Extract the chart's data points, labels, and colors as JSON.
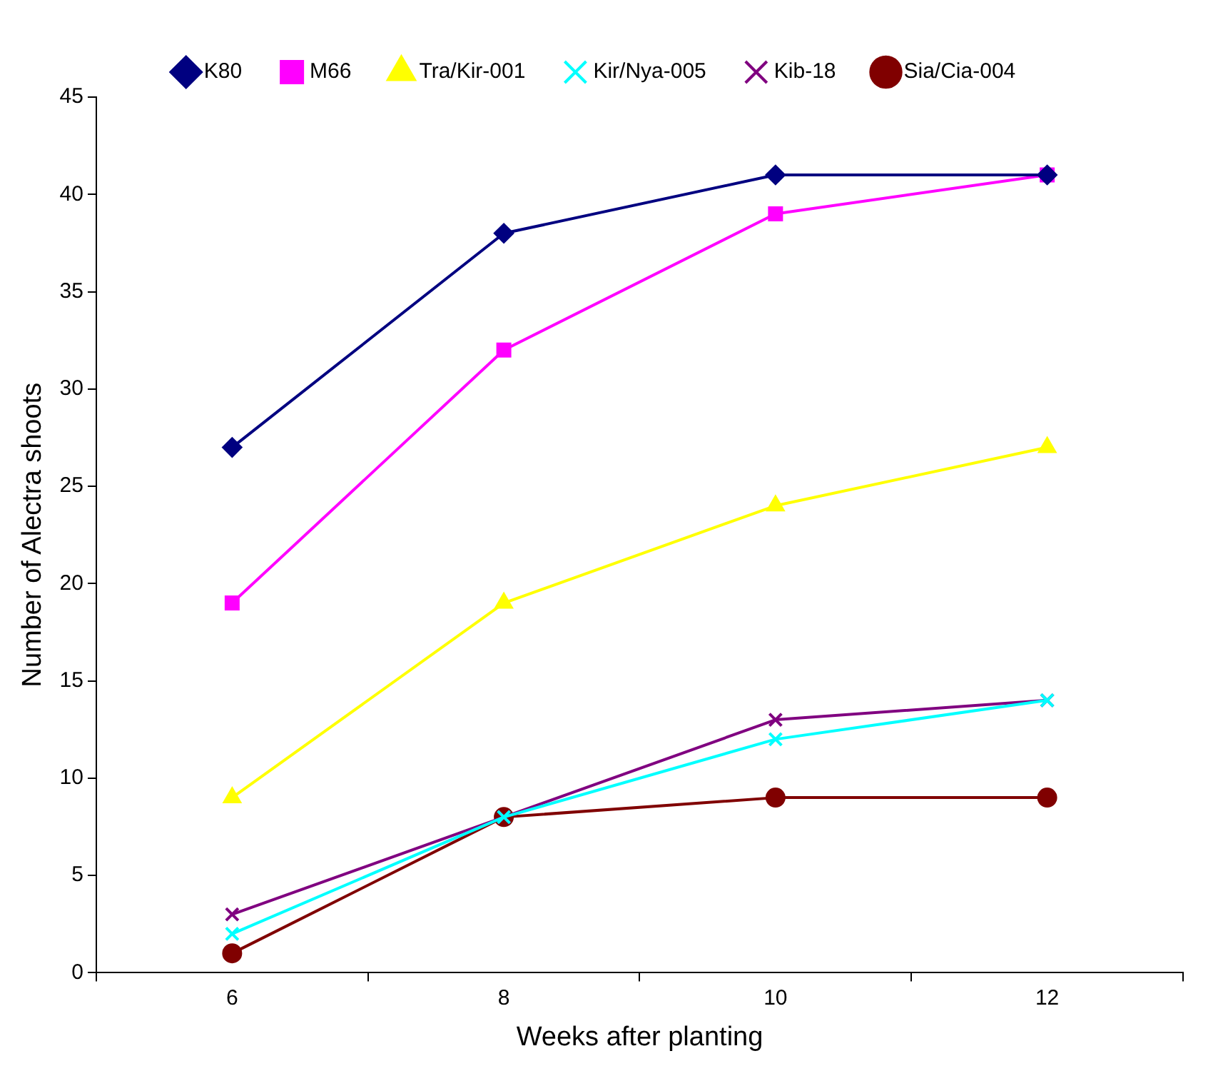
{
  "chart_data": {
    "type": "line",
    "xlabel": "Weeks after planting",
    "ylabel": "Number of Alectra shoots",
    "categories": [
      "6",
      "8",
      "10",
      "12"
    ],
    "series": [
      {
        "name": "K80",
        "color": "#000080",
        "marker": "diamond",
        "values": [
          27,
          38,
          41,
          41
        ]
      },
      {
        "name": "M66",
        "color": "#ff00ff",
        "marker": "square",
        "values": [
          19,
          32,
          39,
          41
        ]
      },
      {
        "name": "Tra/Kir-001",
        "color": "#ffff00",
        "marker": "triangle",
        "values": [
          9,
          19,
          24,
          27
        ]
      },
      {
        "name": "Kir/Nya-005",
        "color": "#00ffff",
        "marker": "cross",
        "values": [
          2,
          8,
          12,
          14
        ]
      },
      {
        "name": "Kib-18",
        "color": "#800080",
        "marker": "cross",
        "values": [
          3,
          8,
          13,
          14
        ]
      },
      {
        "name": "Sia/Cia-004",
        "color": "#800000",
        "marker": "circle",
        "values": [
          1,
          8,
          9,
          9
        ]
      }
    ],
    "ylim": [
      0,
      45
    ],
    "yticks": [
      0,
      5,
      10,
      15,
      20,
      25,
      30,
      35,
      40,
      45
    ],
    "grid": false,
    "legend": "top",
    "line_style": "solid"
  }
}
